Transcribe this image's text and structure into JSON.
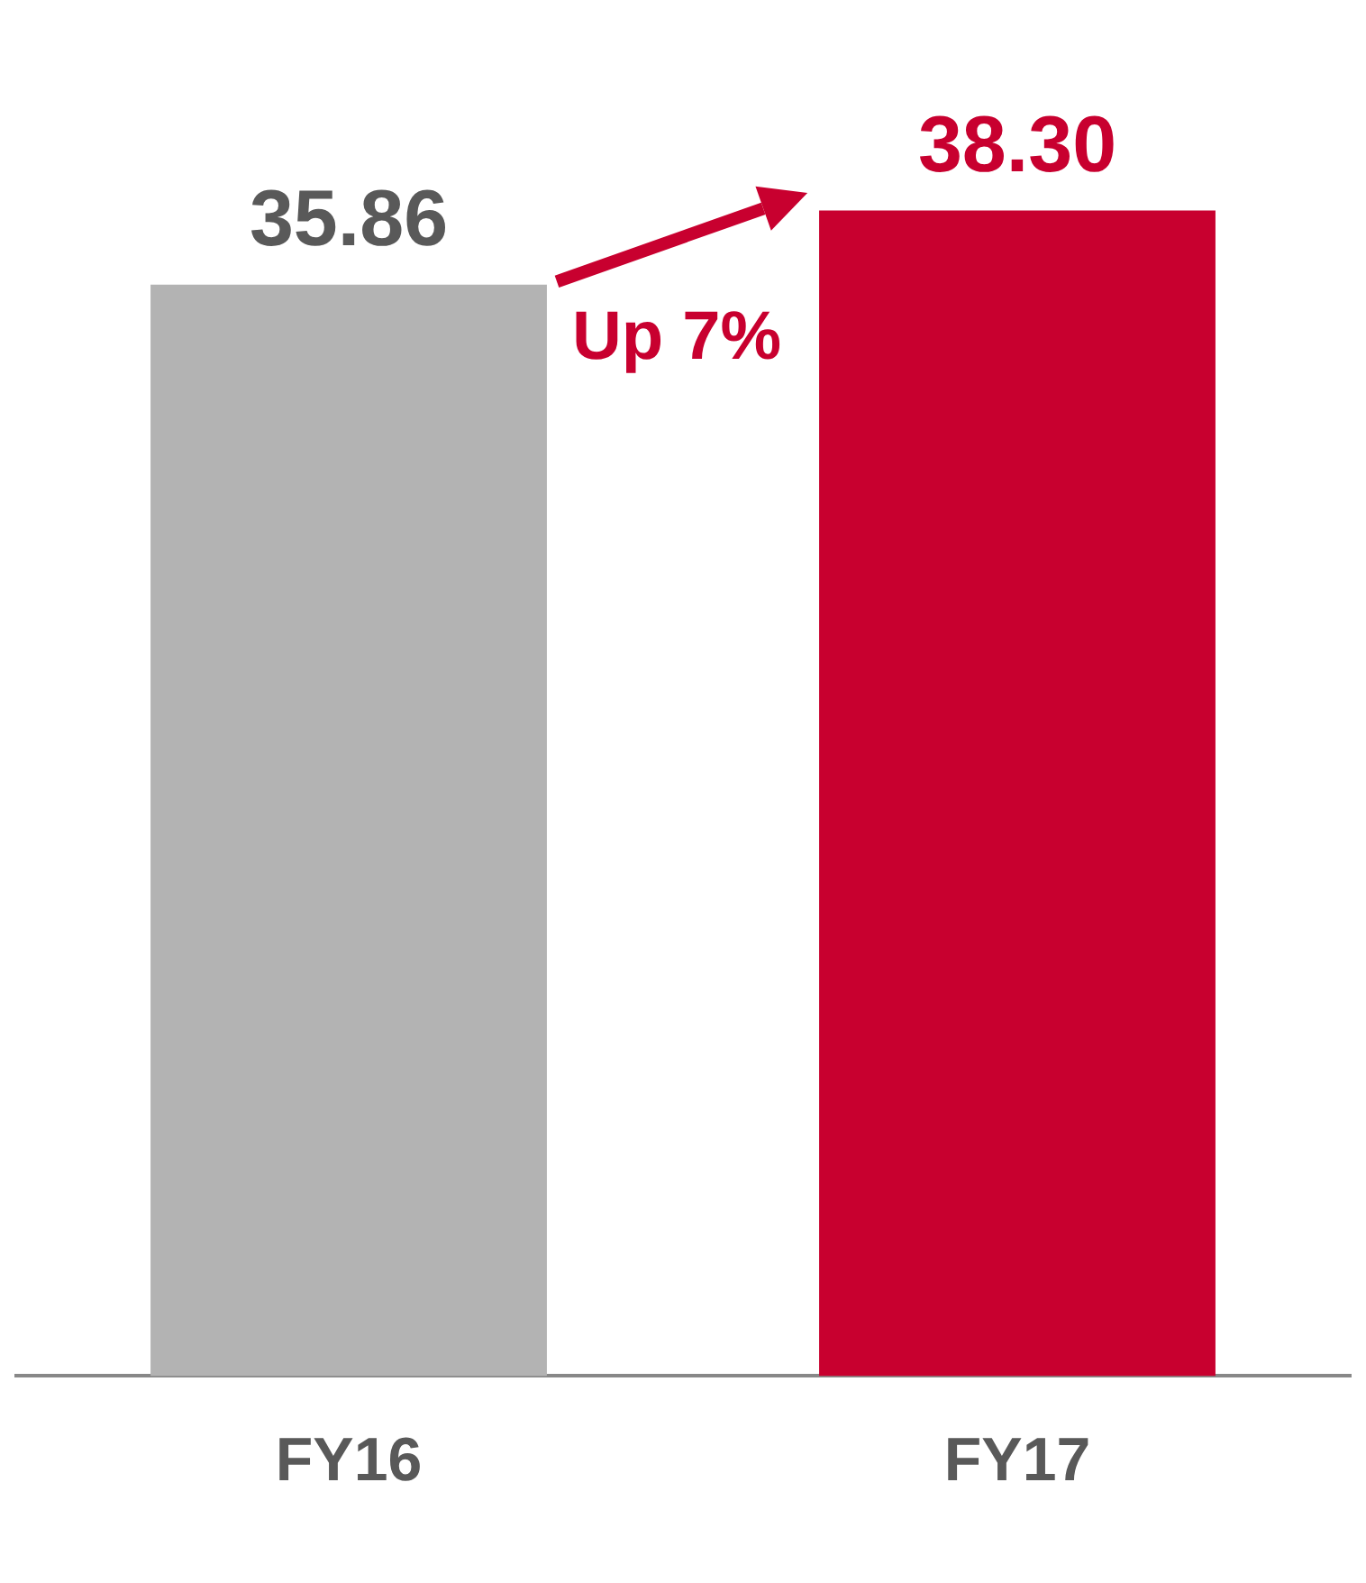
{
  "chart_data": {
    "type": "bar",
    "categories": [
      "FY16",
      "FY17"
    ],
    "values": [
      35.86,
      38.3
    ],
    "colors": [
      "#b3b3b3",
      "#c8002f"
    ],
    "value_labels": [
      "35.86",
      "38.30"
    ],
    "annotations": [
      "Up 7%"
    ],
    "grid": false
  }
}
